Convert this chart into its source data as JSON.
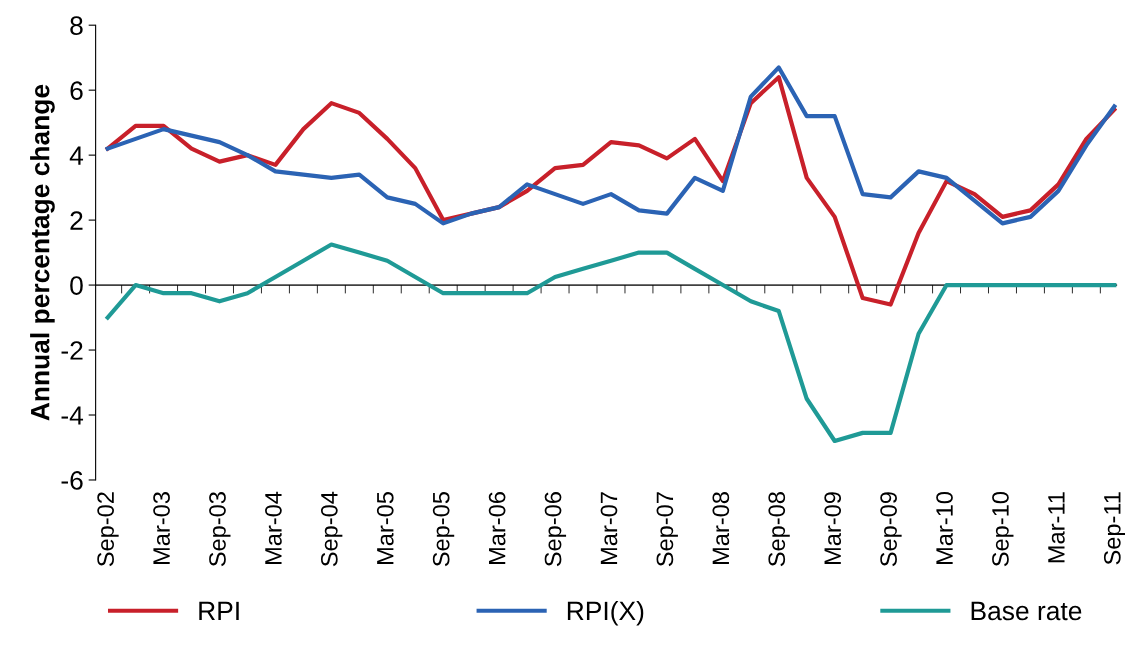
{
  "chart_data": {
    "type": "line",
    "ylabel": "Annual percentage change",
    "categories": [
      "Sep-02",
      null,
      "Mar-03",
      null,
      "Sep-03",
      null,
      "Mar-04",
      null,
      "Sep-04",
      null,
      "Mar-05",
      null,
      "Sep-05",
      null,
      "Mar-06",
      null,
      "Sep-06",
      null,
      "Mar-07",
      null,
      "Sep-07",
      null,
      "Mar-08",
      null,
      "Sep-08",
      null,
      "Mar-09",
      null,
      "Sep-09",
      null,
      "Mar-10",
      null,
      "Sep-10",
      null,
      "Mar-11",
      null,
      "Sep-11"
    ],
    "series": [
      {
        "name": "RPI",
        "color": "#c8202a",
        "values": [
          4.2,
          4.9,
          4.9,
          4.2,
          3.8,
          4.0,
          3.7,
          4.8,
          5.6,
          5.3,
          4.5,
          3.6,
          2.0,
          2.2,
          2.4,
          2.9,
          3.6,
          3.7,
          4.4,
          4.3,
          3.9,
          4.5,
          3.2,
          5.6,
          6.4,
          3.3,
          2.1,
          -0.4,
          -0.6,
          1.6,
          3.2,
          2.8,
          2.1,
          2.3,
          3.1,
          4.5,
          5.4
        ]
      },
      {
        "name": "RPI(X)",
        "color": "#2b63b4",
        "values": [
          4.2,
          4.5,
          4.8,
          4.6,
          4.4,
          4.0,
          3.5,
          3.4,
          3.3,
          3.4,
          2.7,
          2.5,
          1.9,
          2.2,
          2.4,
          3.1,
          2.8,
          2.5,
          2.8,
          2.3,
          2.2,
          3.3,
          2.9,
          5.8,
          6.7,
          5.2,
          5.2,
          2.8,
          2.7,
          3.5,
          3.3,
          2.6,
          1.9,
          2.1,
          2.9,
          4.3,
          5.5
        ]
      },
      {
        "name": "Base rate",
        "color": "#1f9a96",
        "values": [
          -1.0,
          0.0,
          -0.25,
          -0.25,
          -0.5,
          -0.25,
          0.25,
          0.75,
          1.25,
          1.0,
          0.75,
          0.25,
          -0.25,
          -0.25,
          -0.25,
          -0.25,
          0.25,
          0.5,
          0.75,
          1.0,
          1.0,
          0.5,
          0.0,
          -0.5,
          -0.8,
          -3.5,
          -4.8,
          -4.55,
          -4.55,
          -1.5,
          0.0,
          0.0,
          0.0,
          0.0,
          0.0,
          0.0,
          0.0
        ]
      }
    ],
    "ylim": [
      -6,
      8
    ],
    "yticks": [
      -6,
      -4,
      -2,
      0,
      2,
      4,
      6,
      8
    ],
    "ref_lines": [
      {
        "axis": "y",
        "value": 0,
        "color": "#404040"
      }
    ],
    "grid": false,
    "legend": "bottom",
    "marker": "none",
    "line_style": "solid"
  }
}
